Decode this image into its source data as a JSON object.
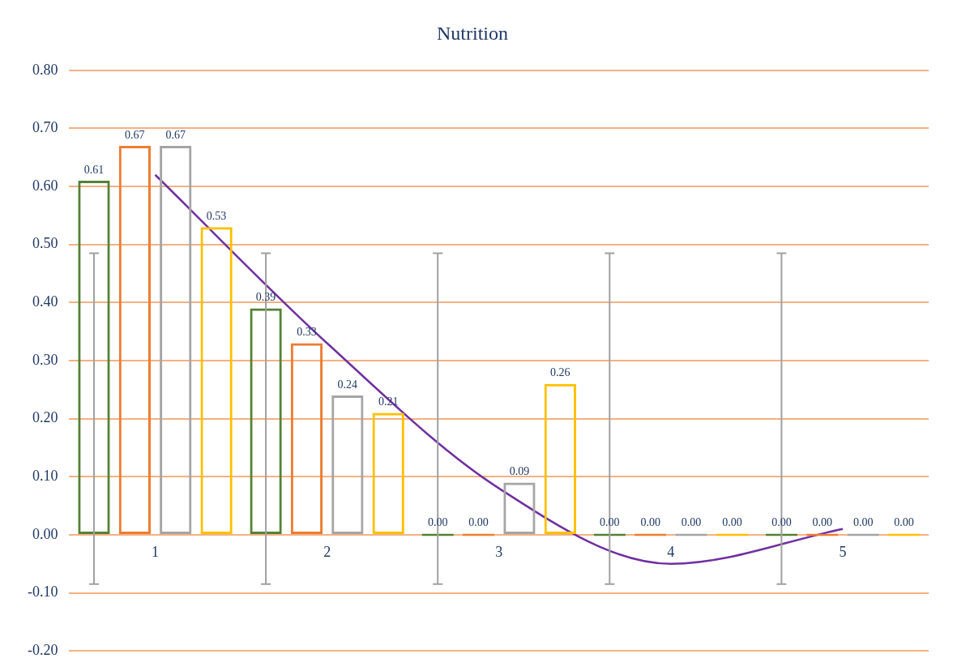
{
  "chart_data": {
    "type": "bar",
    "title": "Nutrition",
    "categories": [
      "1",
      "2",
      "3",
      "4",
      "5"
    ],
    "series": [
      {
        "color": "#548235",
        "values": [
          0.61,
          0.39,
          0,
          0,
          0
        ],
        "value_labels": [
          "0.61",
          "0.39",
          "0.00",
          "0.00",
          "0.00"
        ],
        "errors": [
          [
            -0.085,
            0.485
          ],
          [
            -0.085,
            0.485
          ],
          [
            -0.085,
            0.485
          ],
          [
            -0.085,
            0.485
          ],
          [
            -0.085,
            0.485
          ]
        ]
      },
      {
        "color": "#ed7d31",
        "values": [
          0.67,
          0.33,
          0,
          0,
          0
        ],
        "value_labels": [
          "0.67",
          "0.33",
          "0.00",
          "0.00",
          "0.00"
        ]
      },
      {
        "color": "#a5a5a5",
        "values": [
          0.67,
          0.24,
          0.09,
          0,
          0
        ],
        "value_labels": [
          "0.67",
          "0.24",
          "0.09",
          "0.00",
          "0.00"
        ]
      },
      {
        "color": "#ffc000",
        "values": [
          0.53,
          0.21,
          0.26,
          0,
          0
        ],
        "value_labels": [
          "0.53",
          "0.21",
          "0.26",
          "0.00",
          "0.00"
        ]
      },
      {
        "type": "line",
        "color": "#7030a0",
        "values": [
          0.62,
          0.33,
          0.08,
          -0.05,
          0.01
        ]
      }
    ],
    "ylim": [
      -0.2,
      0.8
    ],
    "yticks": [
      {
        "value": -0.2,
        "label": "-0.20"
      },
      {
        "value": -0.1,
        "label": "-0.10"
      },
      {
        "value": 0,
        "label": "0.00"
      },
      {
        "value": 0.1,
        "label": "0.10"
      },
      {
        "value": 0.2,
        "label": "0.20"
      },
      {
        "value": 0.3,
        "label": "0.30"
      },
      {
        "value": 0.4,
        "label": "0.40"
      },
      {
        "value": 0.5,
        "label": "0.50"
      },
      {
        "value": 0.6,
        "label": "0.60"
      },
      {
        "value": 0.7,
        "label": "0.70"
      },
      {
        "value": 0.8,
        "label": "0.80"
      }
    ],
    "grid": "y",
    "marker": "none",
    "line_style": "solid",
    "legend": false
  }
}
